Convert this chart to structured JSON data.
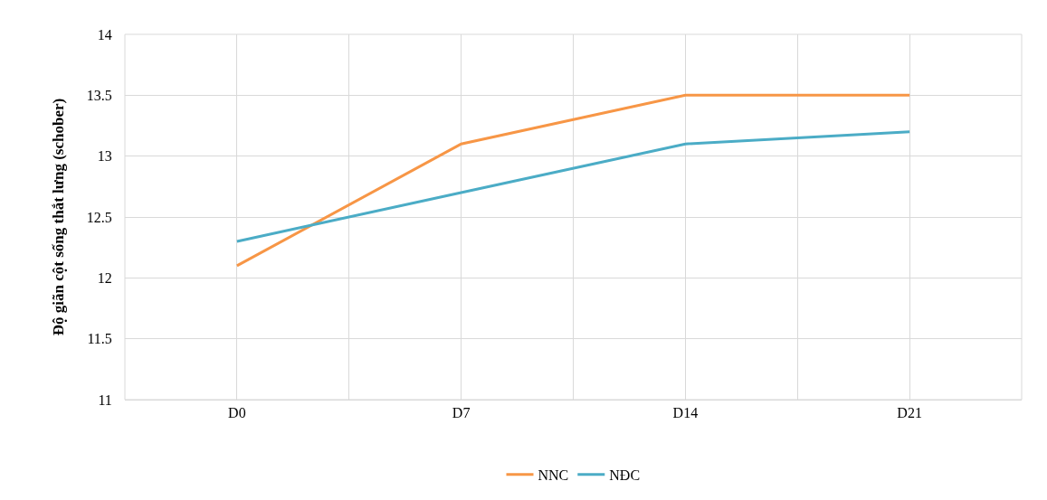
{
  "chart_data": {
    "type": "line",
    "ylabel": "Độ giãn cột sống thắt lưng (schober)",
    "categories": [
      "D0",
      "D7",
      "D14",
      "D21"
    ],
    "series": [
      {
        "name": "NNC",
        "color": "#f79646",
        "values": [
          12.1,
          13.1,
          13.5,
          13.5
        ]
      },
      {
        "name": "NĐC",
        "color": "#4bacc6",
        "values": [
          12.3,
          12.7,
          13.1,
          13.2
        ]
      }
    ],
    "ylim": [
      11,
      14
    ],
    "yticks": [
      11,
      11.5,
      12,
      12.5,
      13,
      13.5,
      14
    ],
    "grid": true,
    "legend": "bottom",
    "marker": "none",
    "line_style": "solid"
  }
}
